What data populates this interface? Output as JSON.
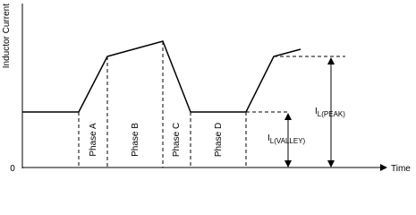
{
  "axes": {
    "y_label": "Inductor Current",
    "origin": "0",
    "x_label": "Time"
  },
  "phases": [
    "Phase A",
    "Phase B",
    "Phase C",
    "Phase D"
  ],
  "annotations": {
    "peak": {
      "symbol": "I",
      "subscript": "L(PEAK)"
    },
    "valley": {
      "symbol": "I",
      "subscript": "L(VALLEY)"
    }
  }
}
